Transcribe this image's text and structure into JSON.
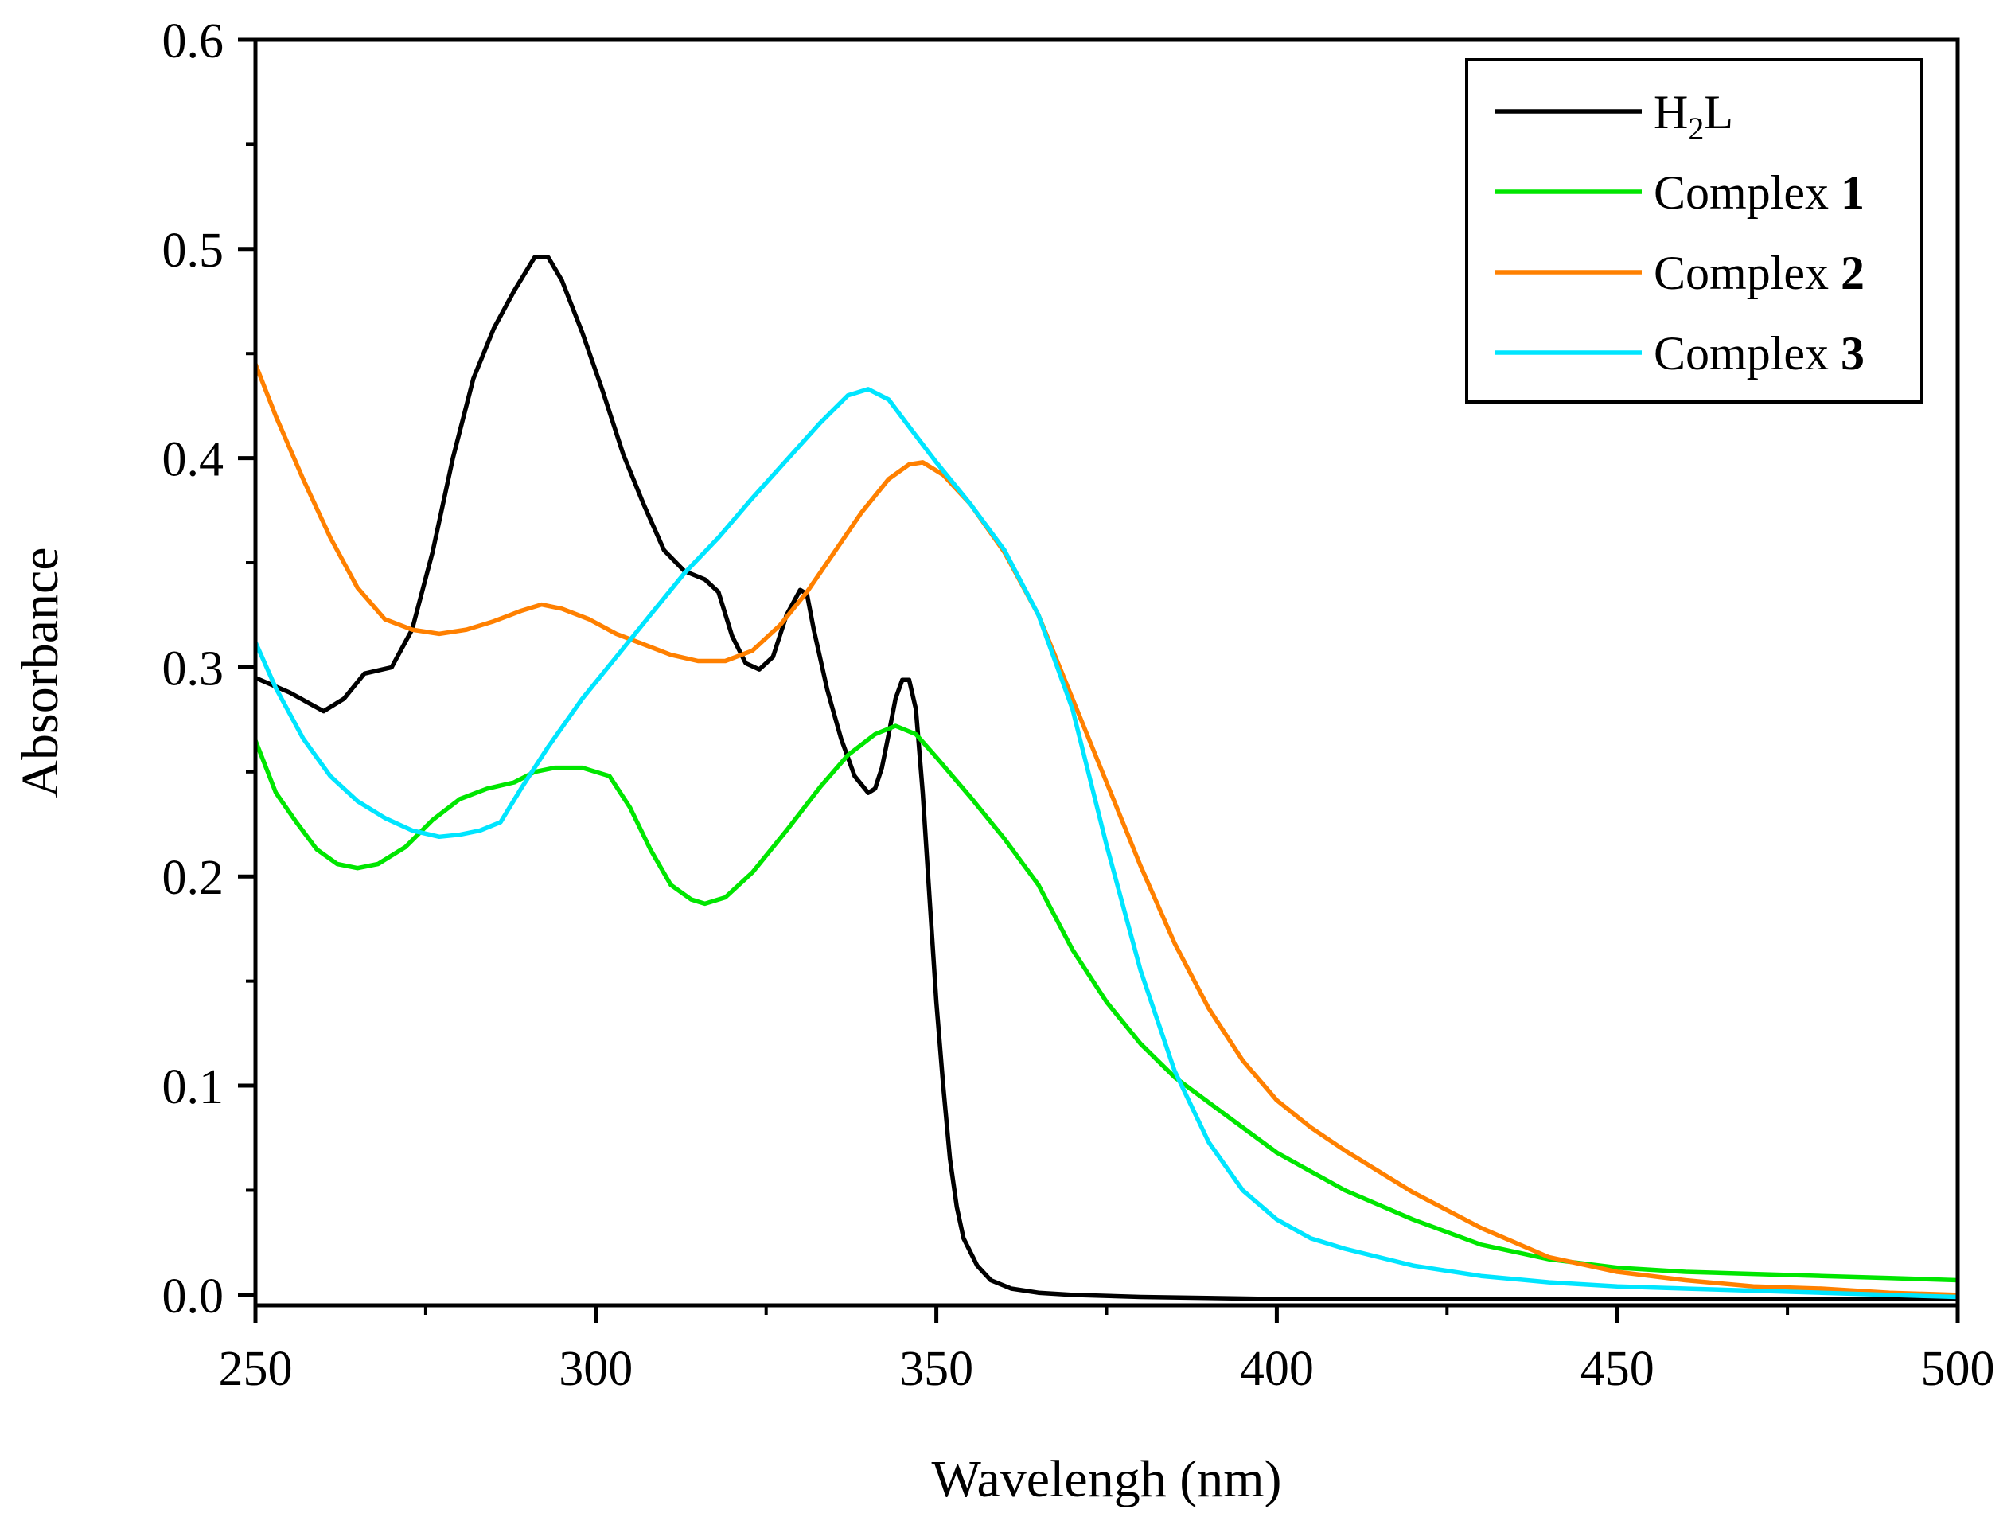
{
  "chart_data": {
    "type": "line",
    "xlabel": "Wavelengh (nm)",
    "ylabel": "Absorbance",
    "xlim": [
      250,
      500
    ],
    "ylim": [
      -0.005,
      0.6
    ],
    "x_ticks": [
      250,
      300,
      350,
      400,
      450,
      500
    ],
    "x_tick_labels": [
      "250",
      "300",
      "350",
      "400",
      "450",
      "500"
    ],
    "y_ticks": [
      0.0,
      0.1,
      0.2,
      0.3,
      0.4,
      0.5,
      0.6
    ],
    "y_tick_labels": [
      "0.0",
      "0.1",
      "0.2",
      "0.3",
      "0.4",
      "0.5",
      "0.6"
    ],
    "grid": false,
    "legend_position": "top-right",
    "series": [
      {
        "name": "H2L",
        "label_main": "H",
        "label_sub": "2",
        "label_tail": "L",
        "color": "#000000",
        "points": [
          [
            250,
            0.295
          ],
          [
            255,
            0.288
          ],
          [
            260,
            0.279
          ],
          [
            263,
            0.285
          ],
          [
            266,
            0.297
          ],
          [
            270,
            0.3
          ],
          [
            273,
            0.318
          ],
          [
            276,
            0.355
          ],
          [
            279,
            0.4
          ],
          [
            282,
            0.438
          ],
          [
            285,
            0.462
          ],
          [
            288,
            0.48
          ],
          [
            291,
            0.496
          ],
          [
            293,
            0.496
          ],
          [
            295,
            0.485
          ],
          [
            298,
            0.46
          ],
          [
            301,
            0.432
          ],
          [
            304,
            0.402
          ],
          [
            307,
            0.378
          ],
          [
            310,
            0.356
          ],
          [
            313,
            0.346
          ],
          [
            316,
            0.342
          ],
          [
            318,
            0.336
          ],
          [
            320,
            0.315
          ],
          [
            322,
            0.302
          ],
          [
            324,
            0.299
          ],
          [
            326,
            0.305
          ],
          [
            328,
            0.325
          ],
          [
            330,
            0.337
          ],
          [
            331,
            0.335
          ],
          [
            332,
            0.318
          ],
          [
            334,
            0.289
          ],
          [
            336,
            0.266
          ],
          [
            338,
            0.248
          ],
          [
            340,
            0.24
          ],
          [
            341,
            0.242
          ],
          [
            342,
            0.252
          ],
          [
            343,
            0.268
          ],
          [
            344,
            0.285
          ],
          [
            345,
            0.294
          ],
          [
            346,
            0.294
          ],
          [
            347,
            0.28
          ],
          [
            348,
            0.24
          ],
          [
            349,
            0.19
          ],
          [
            350,
            0.14
          ],
          [
            351,
            0.1
          ],
          [
            352,
            0.065
          ],
          [
            353,
            0.042
          ],
          [
            354,
            0.027
          ],
          [
            356,
            0.014
          ],
          [
            358,
            0.007
          ],
          [
            361,
            0.003
          ],
          [
            365,
            0.001
          ],
          [
            370,
            0.0
          ],
          [
            380,
            -0.001
          ],
          [
            400,
            -0.002
          ],
          [
            440,
            -0.002
          ],
          [
            480,
            -0.002
          ],
          [
            500,
            -0.002
          ]
        ]
      },
      {
        "name": "Complex 1",
        "label_main": "Complex ",
        "label_bold": "1",
        "color": "#00e600",
        "points": [
          [
            250,
            0.265
          ],
          [
            253,
            0.24
          ],
          [
            256,
            0.226
          ],
          [
            259,
            0.213
          ],
          [
            262,
            0.206
          ],
          [
            265,
            0.204
          ],
          [
            268,
            0.206
          ],
          [
            272,
            0.214
          ],
          [
            276,
            0.227
          ],
          [
            280,
            0.237
          ],
          [
            284,
            0.242
          ],
          [
            288,
            0.245
          ],
          [
            291,
            0.25
          ],
          [
            294,
            0.252
          ],
          [
            298,
            0.252
          ],
          [
            302,
            0.248
          ],
          [
            305,
            0.233
          ],
          [
            308,
            0.213
          ],
          [
            311,
            0.196
          ],
          [
            314,
            0.189
          ],
          [
            316,
            0.187
          ],
          [
            319,
            0.19
          ],
          [
            323,
            0.202
          ],
          [
            328,
            0.222
          ],
          [
            333,
            0.243
          ],
          [
            337,
            0.258
          ],
          [
            341,
            0.268
          ],
          [
            344,
            0.272
          ],
          [
            347,
            0.268
          ],
          [
            350,
            0.257
          ],
          [
            355,
            0.238
          ],
          [
            360,
            0.218
          ],
          [
            365,
            0.196
          ],
          [
            370,
            0.165
          ],
          [
            375,
            0.14
          ],
          [
            380,
            0.12
          ],
          [
            385,
            0.104
          ],
          [
            390,
            0.092
          ],
          [
            395,
            0.08
          ],
          [
            400,
            0.068
          ],
          [
            410,
            0.05
          ],
          [
            420,
            0.036
          ],
          [
            430,
            0.024
          ],
          [
            440,
            0.017
          ],
          [
            450,
            0.013
          ],
          [
            460,
            0.011
          ],
          [
            470,
            0.01
          ],
          [
            480,
            0.009
          ],
          [
            490,
            0.008
          ],
          [
            500,
            0.007
          ]
        ]
      },
      {
        "name": "Complex 2",
        "label_main": "Complex ",
        "label_bold": "2",
        "color": "#ff8000",
        "points": [
          [
            250,
            0.445
          ],
          [
            253,
            0.42
          ],
          [
            257,
            0.39
          ],
          [
            261,
            0.362
          ],
          [
            265,
            0.338
          ],
          [
            269,
            0.323
          ],
          [
            273,
            0.318
          ],
          [
            277,
            0.316
          ],
          [
            281,
            0.318
          ],
          [
            285,
            0.322
          ],
          [
            289,
            0.327
          ],
          [
            292,
            0.33
          ],
          [
            295,
            0.328
          ],
          [
            299,
            0.323
          ],
          [
            303,
            0.316
          ],
          [
            307,
            0.311
          ],
          [
            311,
            0.306
          ],
          [
            315,
            0.303
          ],
          [
            319,
            0.303
          ],
          [
            323,
            0.308
          ],
          [
            327,
            0.32
          ],
          [
            331,
            0.336
          ],
          [
            335,
            0.355
          ],
          [
            339,
            0.374
          ],
          [
            343,
            0.39
          ],
          [
            346,
            0.397
          ],
          [
            348,
            0.398
          ],
          [
            351,
            0.392
          ],
          [
            355,
            0.378
          ],
          [
            360,
            0.355
          ],
          [
            365,
            0.325
          ],
          [
            370,
            0.285
          ],
          [
            375,
            0.245
          ],
          [
            380,
            0.205
          ],
          [
            385,
            0.168
          ],
          [
            390,
            0.137
          ],
          [
            395,
            0.112
          ],
          [
            400,
            0.093
          ],
          [
            405,
            0.08
          ],
          [
            410,
            0.069
          ],
          [
            420,
            0.049
          ],
          [
            430,
            0.032
          ],
          [
            440,
            0.018
          ],
          [
            450,
            0.011
          ],
          [
            460,
            0.007
          ],
          [
            470,
            0.004
          ],
          [
            480,
            0.003
          ],
          [
            490,
            0.001
          ],
          [
            500,
            0.0
          ]
        ]
      },
      {
        "name": "Complex 3",
        "label_main": "Complex ",
        "label_bold": "3",
        "color": "#00e5ff",
        "points": [
          [
            250,
            0.312
          ],
          [
            253,
            0.29
          ],
          [
            257,
            0.266
          ],
          [
            261,
            0.248
          ],
          [
            265,
            0.236
          ],
          [
            269,
            0.228
          ],
          [
            273,
            0.222
          ],
          [
            277,
            0.219
          ],
          [
            280,
            0.22
          ],
          [
            283,
            0.222
          ],
          [
            286,
            0.226
          ],
          [
            289,
            0.242
          ],
          [
            293,
            0.262
          ],
          [
            298,
            0.285
          ],
          [
            303,
            0.305
          ],
          [
            308,
            0.325
          ],
          [
            313,
            0.345
          ],
          [
            318,
            0.362
          ],
          [
            323,
            0.381
          ],
          [
            328,
            0.399
          ],
          [
            333,
            0.417
          ],
          [
            337,
            0.43
          ],
          [
            340,
            0.433
          ],
          [
            343,
            0.428
          ],
          [
            346,
            0.415
          ],
          [
            350,
            0.398
          ],
          [
            355,
            0.378
          ],
          [
            360,
            0.356
          ],
          [
            365,
            0.325
          ],
          [
            370,
            0.28
          ],
          [
            375,
            0.215
          ],
          [
            380,
            0.155
          ],
          [
            385,
            0.107
          ],
          [
            390,
            0.073
          ],
          [
            395,
            0.05
          ],
          [
            400,
            0.036
          ],
          [
            405,
            0.027
          ],
          [
            410,
            0.022
          ],
          [
            420,
            0.014
          ],
          [
            430,
            0.009
          ],
          [
            440,
            0.006
          ],
          [
            450,
            0.004
          ],
          [
            460,
            0.003
          ],
          [
            470,
            0.002
          ],
          [
            480,
            0.001
          ],
          [
            490,
            0.0
          ],
          [
            500,
            -0.001
          ]
        ]
      }
    ]
  }
}
